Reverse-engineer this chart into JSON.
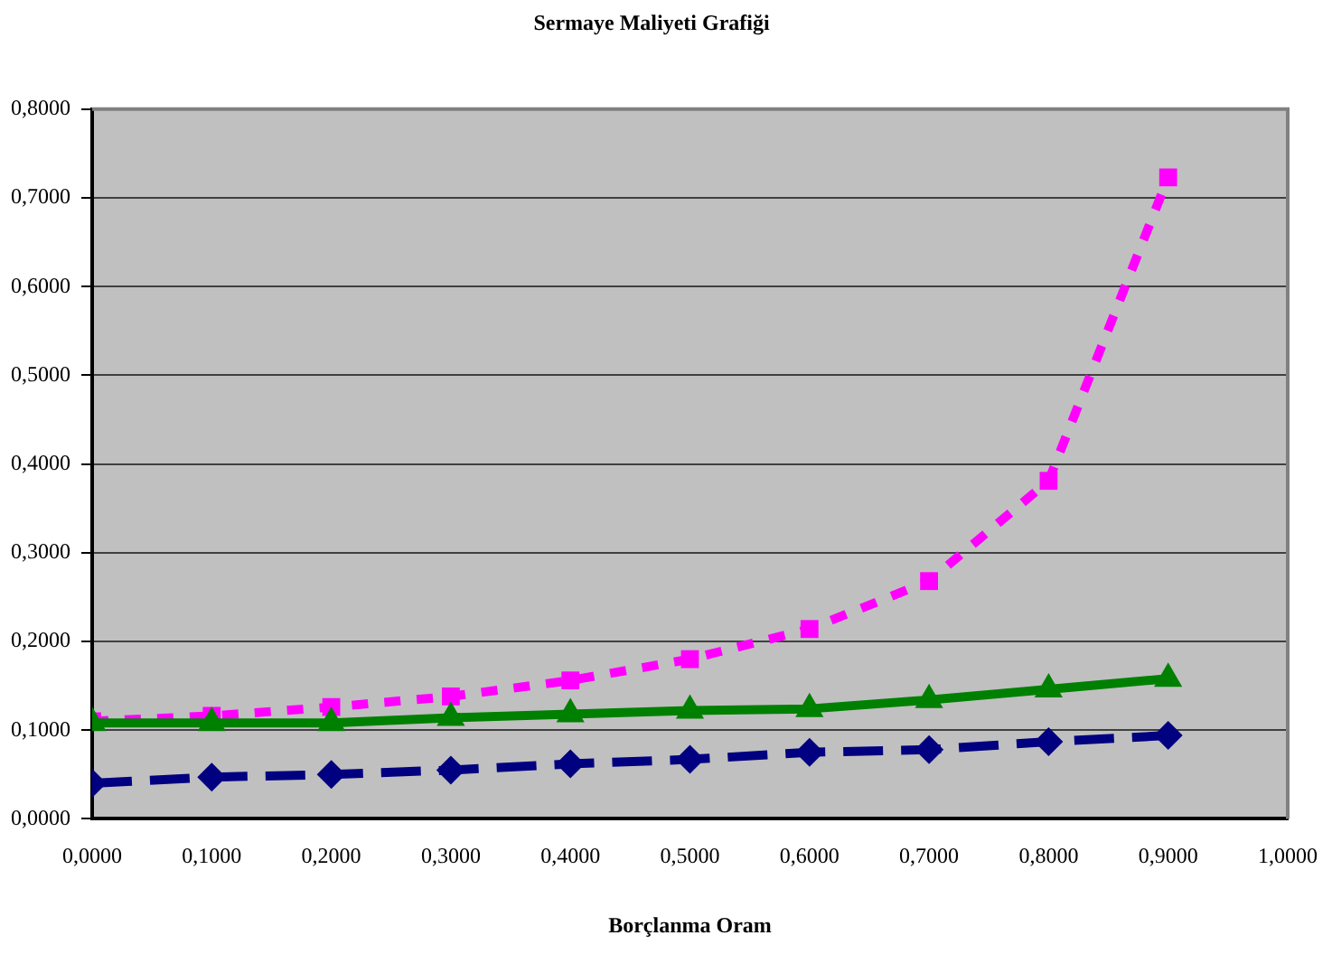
{
  "chart_data": {
    "type": "line",
    "title": "Sermaye Maliyeti Grafiği",
    "xlabel": "Borçlanma Oram",
    "x": [
      0,
      0.1,
      0.2,
      0.3,
      0.4,
      0.5,
      0.6,
      0.7,
      0.8,
      0.9
    ],
    "series": [
      {
        "color": "#000080",
        "marker": "diamond",
        "line_style": "dashed",
        "values": [
          0.04,
          0.047,
          0.05,
          0.055,
          0.062,
          0.067,
          0.075,
          0.078,
          0.087,
          0.094
        ]
      },
      {
        "color": "#ff00ff",
        "marker": "square",
        "line_style": "dotted",
        "values": [
          0.11,
          0.116,
          0.126,
          0.138,
          0.156,
          0.18,
          0.214,
          0.268,
          0.381,
          0.723
        ]
      },
      {
        "color": "#008000",
        "marker": "triangle",
        "line_style": "solid",
        "values": [
          0.108,
          0.108,
          0.108,
          0.114,
          0.118,
          0.122,
          0.124,
          0.134,
          0.146,
          0.158
        ]
      }
    ],
    "xlim": [
      0,
      1
    ],
    "xticks": [
      {
        "value": 0,
        "label": "0,0000"
      },
      {
        "value": 0.1,
        "label": "0,1000"
      },
      {
        "value": 0.2,
        "label": "0,2000"
      },
      {
        "value": 0.3,
        "label": "0,3000"
      },
      {
        "value": 0.4,
        "label": "0,4000"
      },
      {
        "value": 0.5,
        "label": "0,5000"
      },
      {
        "value": 0.6,
        "label": "0,6000"
      },
      {
        "value": 0.7,
        "label": "0,7000"
      },
      {
        "value": 0.8,
        "label": "0,8000"
      },
      {
        "value": 0.9,
        "label": "0,9000"
      },
      {
        "value": 1,
        "label": "1,0000"
      }
    ],
    "ylim": [
      0,
      0.8
    ],
    "yticks": [
      {
        "value": 0,
        "label": "0,0000"
      },
      {
        "value": 0.1,
        "label": "0,1000"
      },
      {
        "value": 0.2,
        "label": "0,2000"
      },
      {
        "value": 0.3,
        "label": "0,3000"
      },
      {
        "value": 0.4,
        "label": "0,4000"
      },
      {
        "value": 0.5,
        "label": "0,5000"
      },
      {
        "value": 0.6,
        "label": "0,6000"
      },
      {
        "value": 0.7,
        "label": "0,7000"
      },
      {
        "value": 0.8,
        "label": "0,8000"
      }
    ],
    "grid": "y",
    "legend": false
  }
}
